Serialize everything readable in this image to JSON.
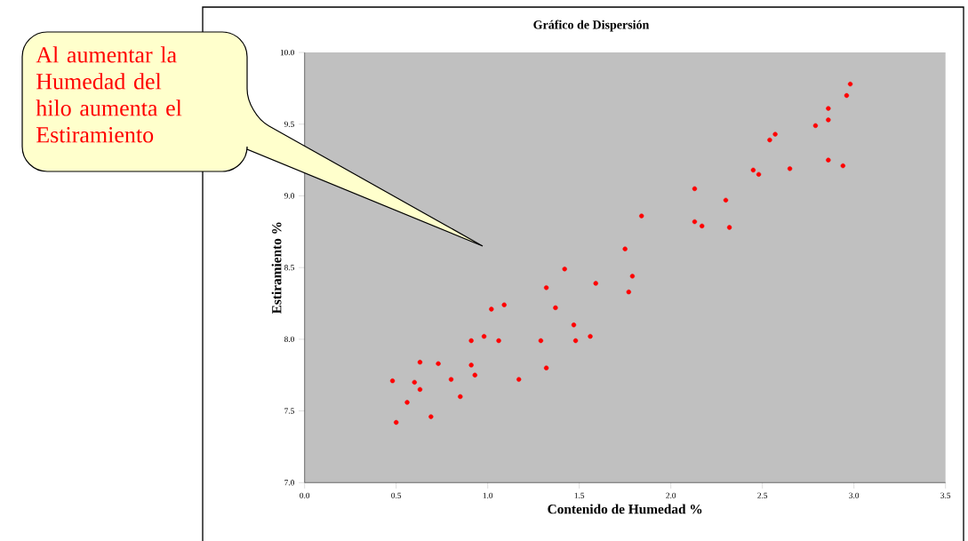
{
  "chart_data": {
    "type": "scatter",
    "title": "Gráfico de Dispersión",
    "xlabel": "Contenido de Humedad %",
    "ylabel": "Estiramiento %",
    "annotations": [
      "Al aumentar la Humedad del hilo aumenta el Estiramiento"
    ],
    "x": [
      0.48,
      0.5,
      0.56,
      0.6,
      0.63,
      0.63,
      0.69,
      0.73,
      0.8,
      0.85,
      0.91,
      0.91,
      0.93,
      0.98,
      1.02,
      1.06,
      1.09,
      1.17,
      1.29,
      1.32,
      1.32,
      1.37,
      1.42,
      1.47,
      1.48,
      1.56,
      1.59,
      1.75,
      1.77,
      1.79,
      1.84,
      2.13,
      2.13,
      2.17,
      2.3,
      2.32,
      2.45,
      2.48,
      2.54,
      2.57,
      2.65,
      2.79,
      2.86,
      2.86,
      2.86,
      2.94,
      2.96,
      2.98
    ],
    "values": [
      7.71,
      7.42,
      7.56,
      7.7,
      7.84,
      7.65,
      7.46,
      7.83,
      7.72,
      7.6,
      7.82,
      7.99,
      7.75,
      8.02,
      8.21,
      7.99,
      8.24,
      7.72,
      7.99,
      8.36,
      7.8,
      8.22,
      8.49,
      8.1,
      7.99,
      8.02,
      8.39,
      8.63,
      8.33,
      8.44,
      8.86,
      9.05,
      8.82,
      8.79,
      8.97,
      8.78,
      9.18,
      9.15,
      9.39,
      9.43,
      9.19,
      9.49,
      9.53,
      9.61,
      9.25,
      9.21,
      9.7,
      9.78
    ],
    "color": "#ff0000",
    "xlim": [
      0,
      3.5
    ],
    "ylim": [
      7,
      10
    ],
    "xticks": [
      {
        "value": 0,
        "label": "0.0"
      },
      {
        "value": 0.5,
        "label": "0.5"
      },
      {
        "value": 1,
        "label": "1.0"
      },
      {
        "value": 1.5,
        "label": "1.5"
      },
      {
        "value": 2,
        "label": "2.0"
      },
      {
        "value": 2.5,
        "label": "2.5"
      },
      {
        "value": 3,
        "label": "3.0"
      },
      {
        "value": 3.5,
        "label": "3.5"
      }
    ],
    "yticks": [
      {
        "value": 7,
        "label": "7.0"
      },
      {
        "value": 7.5,
        "label": "7.5"
      },
      {
        "value": 8,
        "label": "8.0"
      },
      {
        "value": 8.5,
        "label": "8.5"
      },
      {
        "value": 9,
        "label": "9.0"
      },
      {
        "value": 9.5,
        "label": "9.5"
      },
      {
        "value": 10,
        "label": "10.0"
      }
    ]
  }
}
